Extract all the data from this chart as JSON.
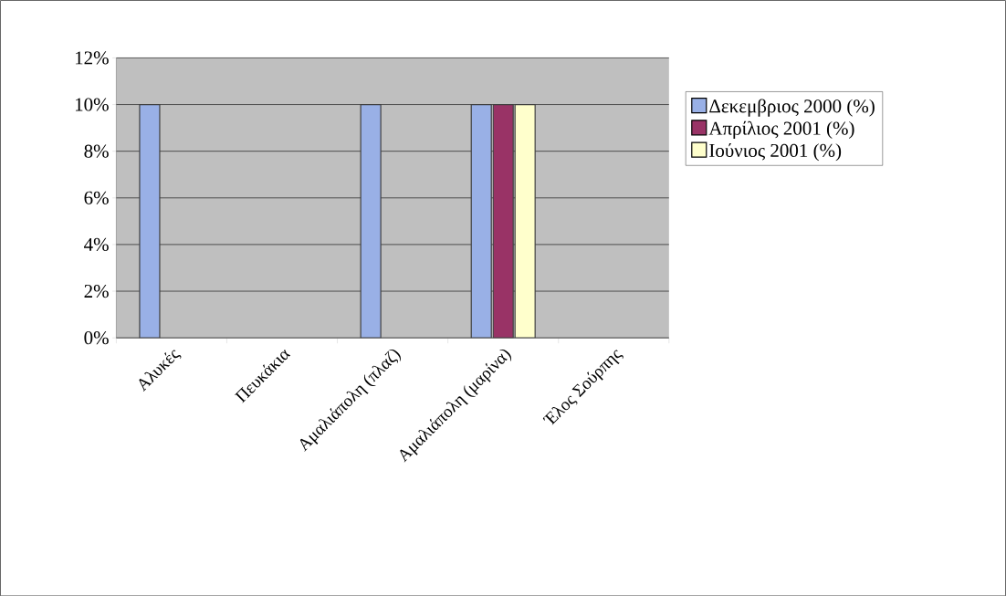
{
  "chart_data": {
    "type": "bar",
    "categories": [
      "Αλυκές",
      "Πευκάκια",
      "Αμαλιάπολη (πλαζ)",
      "Αμαλιάπολη (μαρίνα)",
      "Έλος Σούρπης"
    ],
    "series": [
      {
        "name": "Δεκεμβριος 2000 (%)",
        "color": "#99b0e6",
        "values": [
          10,
          null,
          10,
          10,
          null
        ]
      },
      {
        "name": "Απρίλιος 2001 (%)",
        "color": "#993366",
        "values": [
          null,
          null,
          null,
          10,
          null
        ]
      },
      {
        "name": "Ιούνιος 2001 (%)",
        "color": "#ffffcc",
        "values": [
          null,
          null,
          null,
          10,
          null
        ]
      }
    ],
    "ylim": [
      0,
      12
    ],
    "yticks": [
      {
        "value": 0,
        "label": "0%"
      },
      {
        "value": 2,
        "label": "2%"
      },
      {
        "value": 4,
        "label": "4%"
      },
      {
        "value": 6,
        "label": "6%"
      },
      {
        "value": 8,
        "label": "8%"
      },
      {
        "value": 10,
        "label": "10%"
      },
      {
        "value": 12,
        "label": "12%"
      }
    ],
    "grid": "y",
    "legend": "right"
  }
}
